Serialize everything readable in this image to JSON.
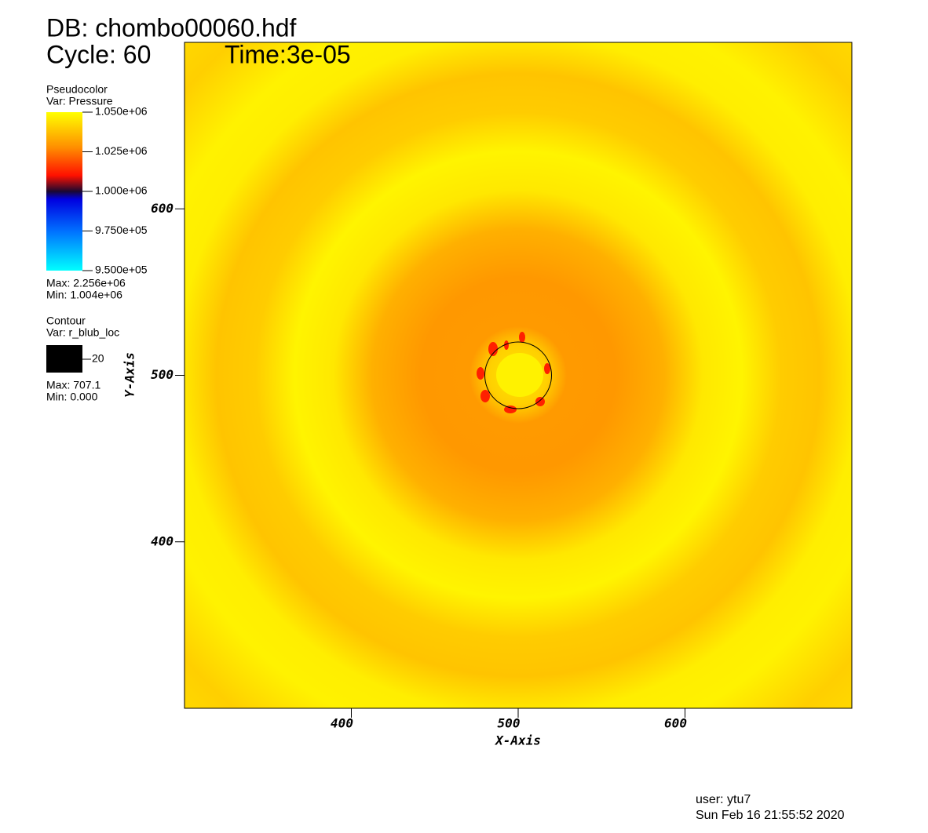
{
  "chart_data": {
    "type": "pseudocolor",
    "title": "DB: chombo00060.hdf",
    "cycle": "Cycle: 60",
    "time": "Time:3e-05",
    "x_label": "X-Axis",
    "y_label": "Y-Axis",
    "xlim": [
      300,
      700
    ],
    "ylim": [
      300,
      700
    ],
    "xticks": [
      400,
      500,
      600
    ],
    "yticks": [
      400,
      500,
      600
    ],
    "colorbar": {
      "title": "Pseudocolor",
      "var": "Var: Pressure",
      "lim": [
        950000,
        1050000
      ],
      "ticks": [
        {
          "value": 1050000,
          "label": "1.050e+06"
        },
        {
          "value": 1025000,
          "label": "1.025e+06"
        },
        {
          "value": 1000000,
          "label": "1.000e+06"
        },
        {
          "value": 975000,
          "label": "9.750e+05"
        },
        {
          "value": 950000,
          "label": "9.500e+05"
        }
      ],
      "max": "Max: 2.256e+06",
      "min": "Min: 1.004e+06"
    },
    "contour": {
      "title": "Contour",
      "var": "Var: r_blub_loc",
      "levels": [
        20
      ],
      "color": "#000000",
      "max": "Max: 707.1",
      "min": "Min: 0.000"
    },
    "user": "user: ytu7",
    "date": "Sun Feb 16 21:55:52 2020"
  }
}
